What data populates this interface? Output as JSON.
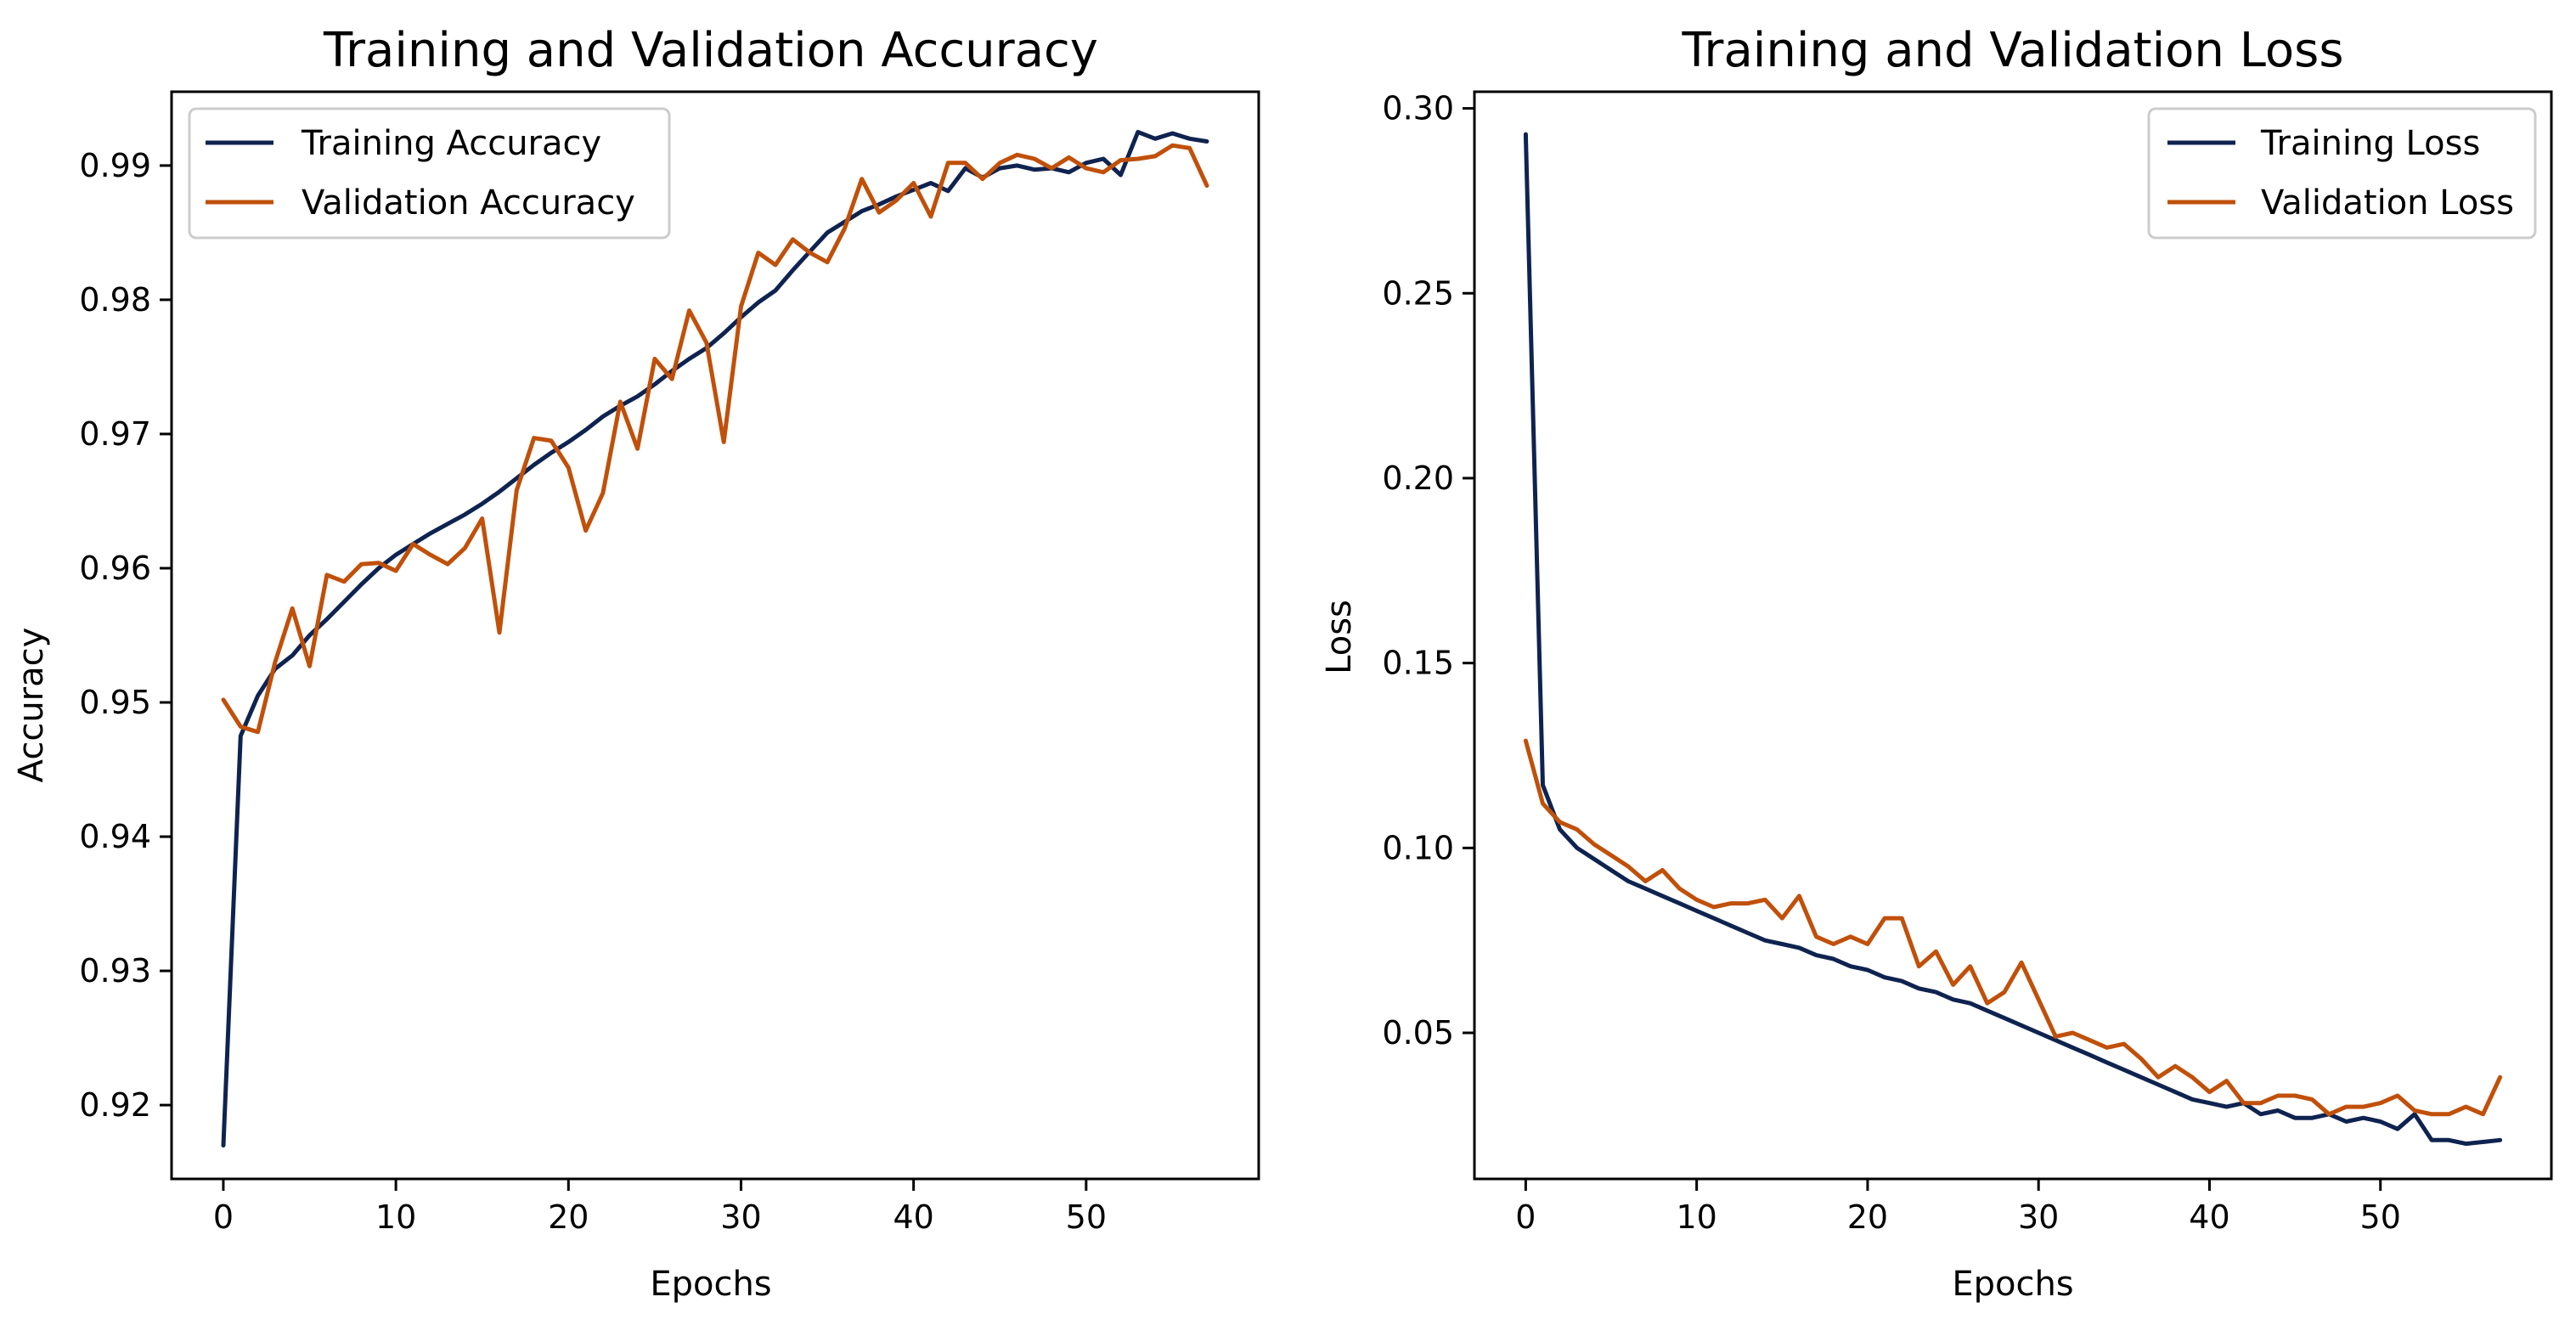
{
  "chart_data": [
    {
      "type": "line",
      "title": "Training and Validation Accuracy",
      "xlabel": "Epochs",
      "ylabel": "Accuracy",
      "xlim": [
        -3,
        60
      ],
      "ylim": [
        0.9145,
        0.9955
      ],
      "xticks": [
        0,
        10,
        20,
        30,
        40,
        50
      ],
      "yticks": [
        0.92,
        0.93,
        0.94,
        0.95,
        0.96,
        0.97,
        0.98,
        0.99
      ],
      "legend_position": "top-left",
      "x": [
        0,
        1,
        2,
        3,
        4,
        5,
        6,
        7,
        8,
        9,
        10,
        11,
        12,
        13,
        14,
        15,
        16,
        17,
        18,
        19,
        20,
        21,
        22,
        23,
        24,
        25,
        26,
        27,
        28,
        29,
        30,
        31,
        32,
        33,
        34,
        35,
        36,
        37,
        38,
        39,
        40,
        41,
        42,
        43,
        44,
        45,
        46,
        47,
        48,
        49,
        50,
        51,
        52,
        53,
        54,
        55,
        56,
        57
      ],
      "series": [
        {
          "name": "Training Accuracy",
          "color": "#0f2350",
          "values": [
            0.917,
            0.9475,
            0.9505,
            0.9525,
            0.9535,
            0.955,
            0.9562,
            0.9575,
            0.9588,
            0.96,
            0.961,
            0.9618,
            0.9626,
            0.9633,
            0.964,
            0.9648,
            0.9657,
            0.9667,
            0.9677,
            0.9686,
            0.9694,
            0.9703,
            0.9713,
            0.9721,
            0.9728,
            0.9737,
            0.9747,
            0.9756,
            0.9764,
            0.9775,
            0.9787,
            0.9798,
            0.9807,
            0.9822,
            0.9836,
            0.985,
            0.9858,
            0.9866,
            0.9871,
            0.9877,
            0.9882,
            0.9887,
            0.9881,
            0.9898,
            0.9891,
            0.9898,
            0.99,
            0.9897,
            0.9898,
            0.9895,
            0.9902,
            0.9905,
            0.9893,
            0.9925,
            0.992,
            0.9924,
            0.992,
            0.9918
          ]
        },
        {
          "name": "Validation Accuracy",
          "color": "#c0500a",
          "values": [
            0.9502,
            0.9482,
            0.9478,
            0.953,
            0.957,
            0.9527,
            0.9595,
            0.959,
            0.9603,
            0.9604,
            0.9598,
            0.9618,
            0.961,
            0.9603,
            0.9615,
            0.9637,
            0.9552,
            0.9658,
            0.9697,
            0.9695,
            0.9675,
            0.9628,
            0.9656,
            0.9724,
            0.9689,
            0.9756,
            0.9741,
            0.9792,
            0.9768,
            0.9694,
            0.9795,
            0.9835,
            0.9826,
            0.9845,
            0.9835,
            0.9828,
            0.9853,
            0.989,
            0.9865,
            0.9874,
            0.9887,
            0.9862,
            0.9902,
            0.9902,
            0.989,
            0.9902,
            0.9908,
            0.9905,
            0.9898,
            0.9906,
            0.9898,
            0.9895,
            0.9904,
            0.9905,
            0.9907,
            0.9915,
            0.9913,
            0.9885
          ]
        }
      ]
    },
    {
      "type": "line",
      "title": "Training and Validation Loss",
      "xlabel": "Epochs",
      "ylabel": "Loss",
      "xlim": [
        -3,
        60
      ],
      "ylim": [
        0.0105,
        0.3045
      ],
      "xticks": [
        0,
        10,
        20,
        30,
        40,
        50
      ],
      "yticks": [
        0.05,
        0.1,
        0.15,
        0.2,
        0.25,
        0.3
      ],
      "ytick_labels": [
        "0.05",
        "0.10",
        "0.15",
        "0.20",
        "0.25",
        "0.30"
      ],
      "legend_position": "top-right",
      "x": [
        0,
        1,
        2,
        3,
        4,
        5,
        6,
        7,
        8,
        9,
        10,
        11,
        12,
        13,
        14,
        15,
        16,
        17,
        18,
        19,
        20,
        21,
        22,
        23,
        24,
        25,
        26,
        27,
        28,
        29,
        30,
        31,
        32,
        33,
        34,
        35,
        36,
        37,
        38,
        39,
        40,
        41,
        42,
        43,
        44,
        45,
        46,
        47,
        48,
        49,
        50,
        51,
        52,
        53,
        54,
        55,
        56,
        57
      ],
      "series": [
        {
          "name": "Training Loss",
          "color": "#0f2350",
          "values": [
            0.293,
            0.117,
            0.105,
            0.1,
            0.097,
            0.094,
            0.091,
            0.089,
            0.087,
            0.085,
            0.083,
            0.081,
            0.079,
            0.077,
            0.075,
            0.074,
            0.073,
            0.071,
            0.07,
            0.068,
            0.067,
            0.065,
            0.064,
            0.062,
            0.061,
            0.059,
            0.058,
            0.056,
            0.054,
            0.052,
            0.05,
            0.048,
            0.046,
            0.044,
            0.042,
            0.04,
            0.038,
            0.036,
            0.034,
            0.032,
            0.031,
            0.03,
            0.031,
            0.028,
            0.029,
            0.027,
            0.027,
            0.028,
            0.026,
            0.027,
            0.026,
            0.024,
            0.028,
            0.021,
            0.021,
            0.02,
            0.0205,
            0.021
          ]
        },
        {
          "name": "Validation Loss",
          "color": "#c0500a",
          "values": [
            0.129,
            0.112,
            0.107,
            0.105,
            0.101,
            0.098,
            0.095,
            0.091,
            0.094,
            0.089,
            0.086,
            0.084,
            0.085,
            0.085,
            0.086,
            0.081,
            0.087,
            0.076,
            0.074,
            0.076,
            0.074,
            0.081,
            0.081,
            0.068,
            0.072,
            0.063,
            0.068,
            0.058,
            0.061,
            0.069,
            0.059,
            0.049,
            0.05,
            0.048,
            0.046,
            0.047,
            0.043,
            0.038,
            0.041,
            0.038,
            0.034,
            0.037,
            0.031,
            0.031,
            0.033,
            0.033,
            0.032,
            0.028,
            0.03,
            0.03,
            0.031,
            0.033,
            0.029,
            0.028,
            0.028,
            0.03,
            0.028,
            0.038
          ]
        }
      ]
    }
  ]
}
